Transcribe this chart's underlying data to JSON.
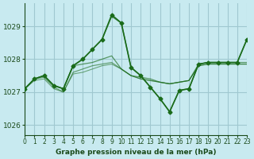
{
  "title": "Graphe pression niveau de la mer (hPa)",
  "bg_color": "#c8eaf0",
  "grid_color": "#a0c8d0",
  "line_color": "#1a6b1a",
  "xlim": [
    0,
    23
  ],
  "ylim": [
    1025.7,
    1029.7
  ],
  "yticks": [
    1026,
    1027,
    1028,
    1029
  ],
  "xticks": [
    0,
    1,
    2,
    3,
    4,
    5,
    6,
    7,
    8,
    9,
    10,
    11,
    12,
    13,
    14,
    15,
    16,
    17,
    18,
    19,
    20,
    21,
    22,
    23
  ],
  "secondary_alphas": [
    0.7,
    0.65,
    0.6,
    0.55
  ],
  "secondary_lws": [
    1.0,
    0.9,
    0.85,
    0.8
  ],
  "series": [
    [
      1027.1,
      1027.4,
      1027.5,
      1027.2,
      1027.1,
      1027.8,
      1028.0,
      1028.3,
      1028.6,
      1029.3,
      1029.1,
      1027.75,
      1027.5,
      1027.15,
      1026.8,
      1026.4,
      1027.05,
      1027.1,
      1027.85,
      1027.9,
      1027.9,
      1027.9,
      1027.9,
      1028.6
    ],
    [
      1027.1,
      1027.4,
      1027.5,
      1027.2,
      1027.1,
      1027.8,
      1027.85,
      1027.9,
      1028.0,
      1028.1,
      1027.7,
      1027.5,
      1027.45,
      1027.4,
      1027.3,
      1027.25,
      1027.3,
      1027.35,
      1027.85,
      1027.9,
      1027.9,
      1027.9,
      1027.9,
      1027.9
    ],
    [
      1027.1,
      1027.4,
      1027.45,
      1027.15,
      1027.0,
      1027.6,
      1027.7,
      1027.8,
      1027.85,
      1027.9,
      1027.7,
      1027.5,
      1027.4,
      1027.35,
      1027.3,
      1027.25,
      1027.3,
      1027.35,
      1027.8,
      1027.85,
      1027.85,
      1027.85,
      1027.85,
      1027.85
    ],
    [
      1027.1,
      1027.35,
      1027.4,
      1027.1,
      1027.0,
      1027.55,
      1027.6,
      1027.7,
      1027.8,
      1027.85,
      1027.7,
      1027.5,
      1027.4,
      1027.35,
      1027.3,
      1027.25,
      1027.3,
      1027.35,
      1027.8,
      1027.85,
      1027.85,
      1027.85,
      1027.85,
      1027.85
    ]
  ],
  "main_series": [
    1027.1,
    1027.4,
    1027.5,
    1027.2,
    1027.1,
    1027.8,
    1028.0,
    1028.3,
    1028.6,
    1029.35,
    1029.1,
    1027.75,
    1027.5,
    1027.15,
    1026.8,
    1026.4,
    1027.05,
    1027.1,
    1027.85,
    1027.9,
    1027.9,
    1027.9,
    1027.9,
    1028.6
  ]
}
